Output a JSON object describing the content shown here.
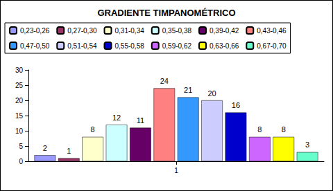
{
  "chart_data": {
    "type": "bar",
    "title": "GRADIENTE TIMPANOMÉTRICO",
    "categories": [
      "1"
    ],
    "series": [
      {
        "name": "0,23-0,26",
        "color": "#9999ff",
        "values": [
          2
        ]
      },
      {
        "name": "0,27-0,30",
        "color": "#993366",
        "values": [
          1
        ]
      },
      {
        "name": "0,31-0,34",
        "color": "#ffffcc",
        "values": [
          8
        ]
      },
      {
        "name": "0,35-0,38",
        "color": "#ccffff",
        "values": [
          12
        ]
      },
      {
        "name": "0,39-0,42",
        "color": "#660066",
        "values": [
          11
        ]
      },
      {
        "name": "0,43-0,46",
        "color": "#ff8080",
        "values": [
          24
        ]
      },
      {
        "name": "0,47-0,50",
        "color": "#3399ff",
        "values": [
          21
        ]
      },
      {
        "name": "0,51-0,54",
        "color": "#ccccff",
        "values": [
          20
        ]
      },
      {
        "name": "0,55-0,58",
        "color": "#0000cc",
        "values": [
          16
        ]
      },
      {
        "name": "0,59-0,62",
        "color": "#cc66ff",
        "values": [
          8
        ]
      },
      {
        "name": "0,63-0,66",
        "color": "#ffff00",
        "values": [
          8
        ]
      },
      {
        "name": "0,67-0,70",
        "color": "#66ffcc",
        "values": [
          3
        ]
      }
    ],
    "ylim": [
      0,
      30
    ],
    "yticks": [
      0,
      5,
      10,
      15,
      20,
      25,
      30
    ],
    "grid": false,
    "legend": "top",
    "data_labels": true
  }
}
